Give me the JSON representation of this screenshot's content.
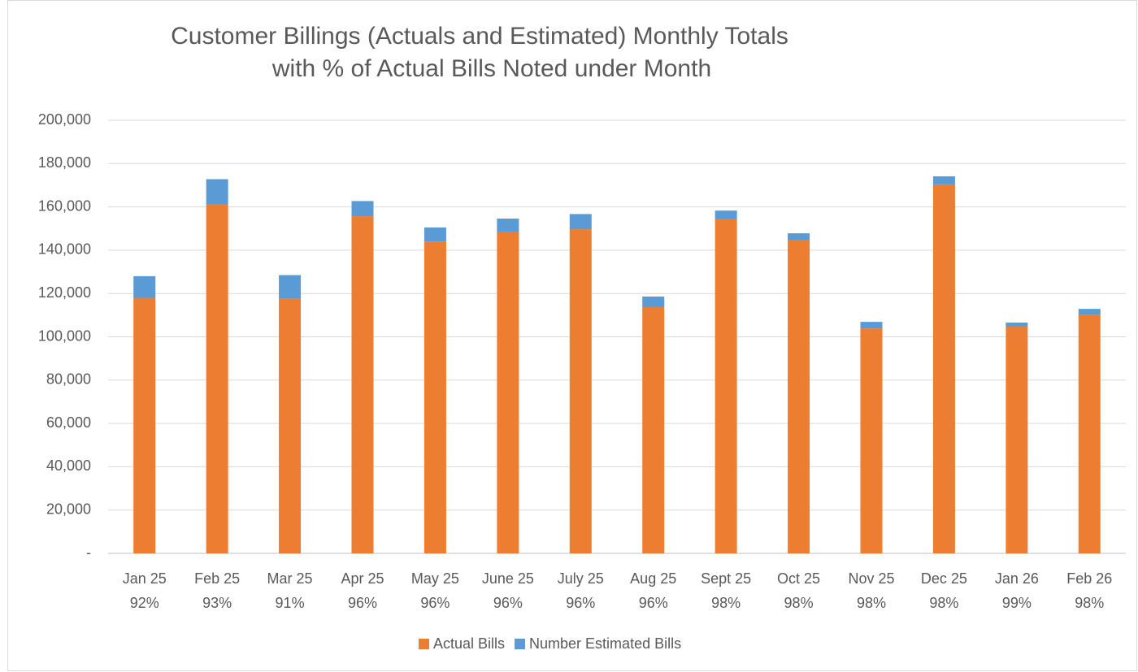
{
  "chart_data": {
    "type": "stacked-bar",
    "title": [
      "Customer Billings (Actuals and Estimated) Monthly Totals",
      "with % of Actual Bills Noted under Month"
    ],
    "categories": [
      "Jan 25",
      "Feb 25",
      "Mar 25",
      "Apr 25",
      "May 25",
      "June 25",
      "July 25",
      "Aug 25",
      "Sept 25",
      "Oct 25",
      "Nov 25",
      "Dec 25",
      "Jan 26",
      "Feb 26"
    ],
    "percent_labels": [
      "92%",
      "93%",
      "91%",
      "96%",
      "96%",
      "96%",
      "96%",
      "96%",
      "98%",
      "98%",
      "98%",
      "98%",
      "99%",
      "98%"
    ],
    "series": [
      {
        "name": "Actual Bills",
        "color": "#ed7d31",
        "values": [
          118000,
          161000,
          117500,
          155700,
          144000,
          148600,
          149700,
          113700,
          154600,
          144500,
          103900,
          170400,
          104700,
          110300
        ]
      },
      {
        "name": "Number Estimated Bills",
        "color": "#5b9bd5",
        "values": [
          10000,
          11800,
          11000,
          7000,
          6500,
          6000,
          7000,
          4900,
          3700,
          3300,
          3000,
          3700,
          1900,
          2600
        ]
      }
    ],
    "ylim": [
      0,
      200000
    ],
    "yticks": [
      {
        "value": 0,
        "label": "-"
      },
      {
        "value": 20000,
        "label": "20,000"
      },
      {
        "value": 40000,
        "label": "40,000"
      },
      {
        "value": 60000,
        "label": "60,000"
      },
      {
        "value": 80000,
        "label": "80,000"
      },
      {
        "value": 100000,
        "label": "100,000"
      },
      {
        "value": 120000,
        "label": "120,000"
      },
      {
        "value": 140000,
        "label": "140,000"
      },
      {
        "value": 160000,
        "label": "160,000"
      },
      {
        "value": 180000,
        "label": "180,000"
      },
      {
        "value": 200000,
        "label": "200,000"
      }
    ],
    "grid": true,
    "legend": "bottom"
  }
}
